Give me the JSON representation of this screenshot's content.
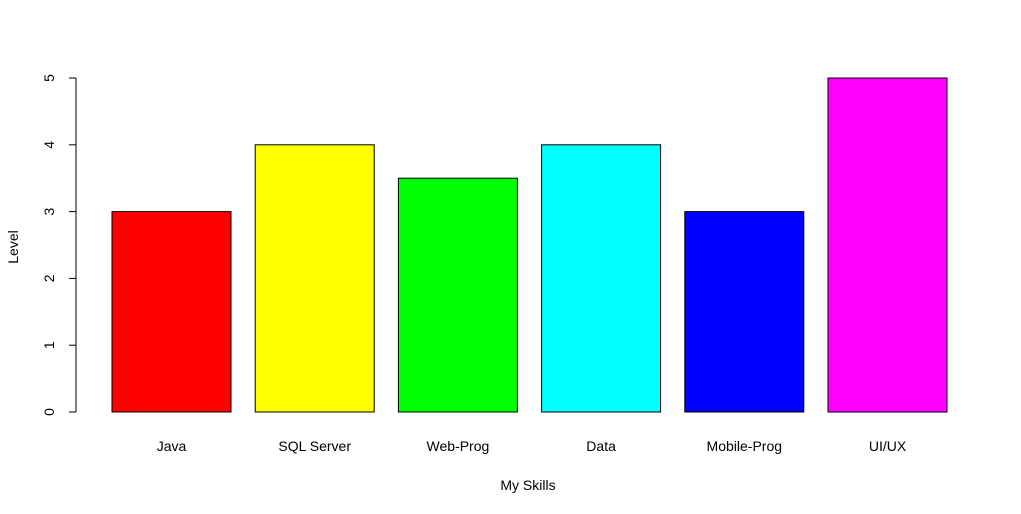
{
  "chart_data": {
    "type": "bar",
    "categories": [
      "Java",
      "SQL Server",
      "Web-Prog",
      "Data",
      "Mobile-Prog",
      "UI/UX"
    ],
    "values": [
      3,
      4,
      3.5,
      4,
      3,
      5
    ],
    "colors": [
      "#ff0000",
      "#ffff00",
      "#00ff00",
      "#00ffff",
      "#0000ff",
      "#ff00ff"
    ],
    "bar_border_color": "#000000",
    "xlabel": "My Skills",
    "ylabel": "Level",
    "ylim": [
      0,
      5
    ],
    "yticks": [
      "0",
      "1",
      "2",
      "3",
      "4",
      "5"
    ],
    "grid": false,
    "legend": "none"
  }
}
